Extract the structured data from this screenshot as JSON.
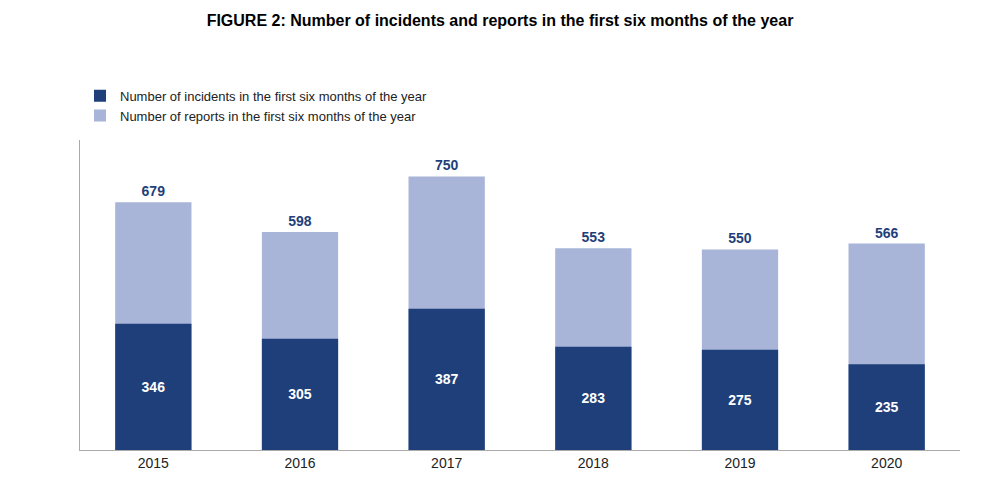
{
  "chart_data": {
    "type": "bar",
    "title": "FIGURE 2: Number of incidents and reports in the first six months of the year",
    "categories": [
      "2015",
      "2016",
      "2017",
      "2018",
      "2019",
      "2020"
    ],
    "series": [
      {
        "name": "Number of reports in the first six months of the year",
        "color": "#a8b4d8",
        "values": [
          679,
          598,
          750,
          553,
          550,
          566
        ]
      },
      {
        "name": "Number of incidents in the first six months of the year",
        "color": "#1f3f7a",
        "values": [
          346,
          305,
          387,
          283,
          275,
          235
        ]
      }
    ],
    "ylim": [
      0,
      850
    ],
    "grid": false,
    "legend": "upper left",
    "data_labels": true,
    "tick_labels": "x"
  }
}
